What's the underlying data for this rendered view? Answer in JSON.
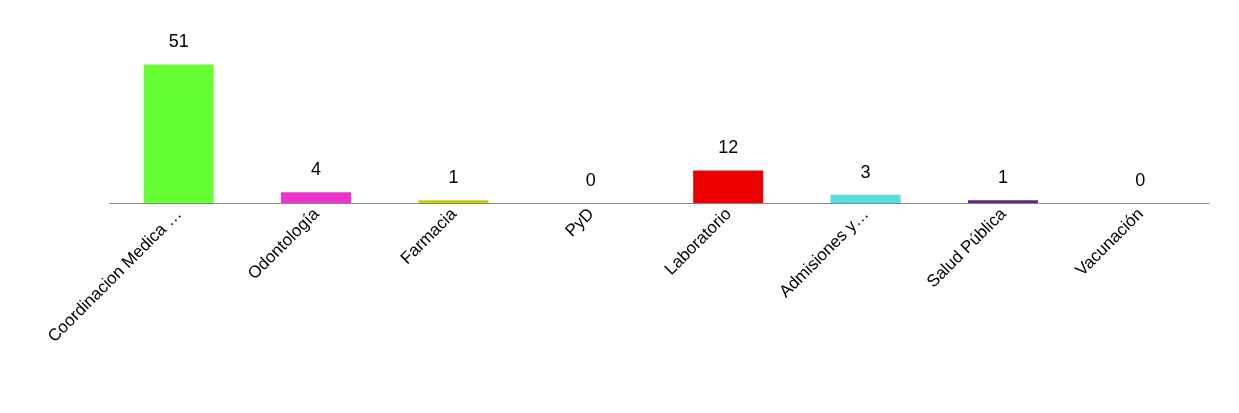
{
  "chart_data": {
    "type": "bar",
    "categories": [
      "Coordinacion Medica …",
      "Odontología",
      "Farmacia",
      "PyD",
      "Laboratorio",
      "Admisiones y…",
      "Salud Pública",
      "Vacunación"
    ],
    "values": [
      51,
      4,
      1,
      0,
      12,
      3,
      1,
      0
    ],
    "colors": [
      "#66ff33",
      "#ee33cc",
      "#cccc00",
      "#336699",
      "#ee0000",
      "#55dddd",
      "#662288",
      "#2233cc"
    ],
    "data_labels": true
  }
}
